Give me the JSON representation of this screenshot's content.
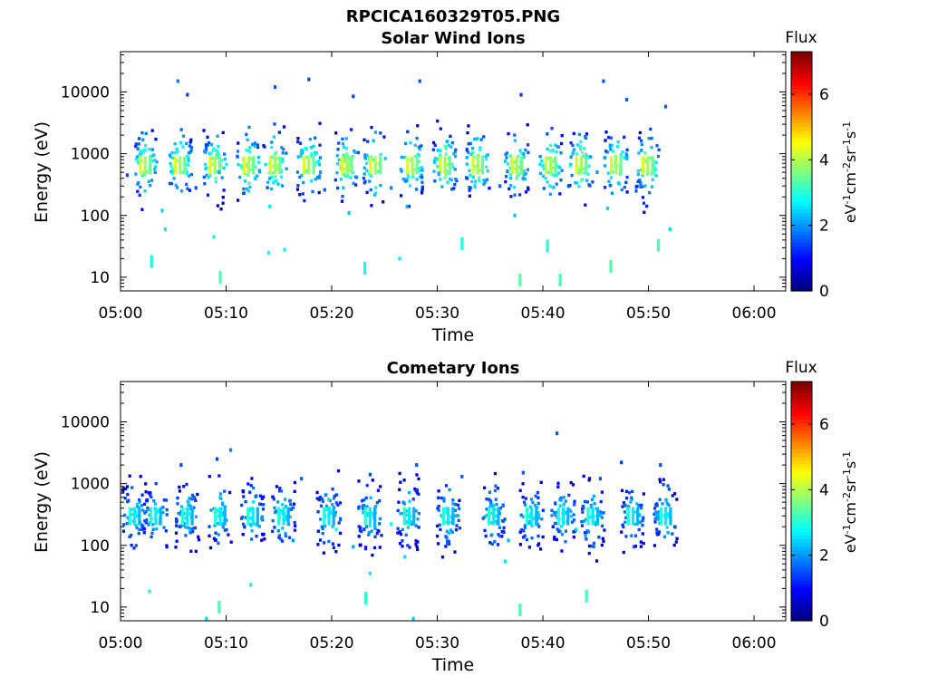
{
  "figure_title": "RPCICA160329T05.PNG",
  "colors": {
    "frame": "#000000",
    "background": "#ffffff"
  },
  "chart_data": [
    {
      "type": "heatmap",
      "title": "Solar Wind Ions",
      "xlabel": "Time",
      "ylabel": "Energy (eV)",
      "x_unit": "minutes after 05:00",
      "xlim": [
        0,
        63
      ],
      "x_ticks": [
        0,
        10,
        20,
        30,
        40,
        50,
        60
      ],
      "x_tick_labels": [
        "05:00",
        "05:10",
        "05:20",
        "05:30",
        "05:40",
        "05:50",
        "06:00"
      ],
      "y_scale": "log",
      "ylim": [
        6,
        45000
      ],
      "y_ticks": [
        10,
        100,
        1000,
        10000
      ],
      "y_tick_labels": [
        "10",
        "100",
        "1000",
        "10000"
      ],
      "colorbar": {
        "title": "Flux",
        "label": "eV-1cm-2sr-1s-1",
        "colormap": "jet",
        "range": [
          0,
          7.3
        ],
        "ticks": [
          0,
          2,
          4,
          6
        ],
        "tick_labels": [
          "0",
          "2",
          "4",
          "6"
        ]
      },
      "bursts": {
        "times": [
          2.2,
          5.5,
          8.8,
          12,
          14.5,
          17.7,
          21.3,
          24,
          27.5,
          30.6,
          33.7,
          37.4,
          40.6,
          43.5,
          46.8,
          49.8
        ],
        "core_energy": 700,
        "peak_level": 4.3
      },
      "points": [
        [
          5.3,
          15000,
          1.8
        ],
        [
          14.5,
          12000,
          1.5
        ],
        [
          17.7,
          16000,
          1.4
        ],
        [
          28.2,
          15000,
          1.5
        ],
        [
          45.6,
          15000,
          1.5
        ],
        [
          21.9,
          8500,
          1.4
        ],
        [
          37.8,
          9000,
          1.3
        ],
        [
          47.8,
          7500,
          1.6
        ],
        [
          51.5,
          5800,
          1.6
        ],
        [
          6.2,
          9000,
          1.3
        ],
        [
          1.5,
          1200,
          1.8
        ],
        [
          0.5,
          450,
          1.4
        ],
        [
          9.2,
          500,
          2.2
        ],
        [
          18.8,
          500,
          2.0
        ],
        [
          30,
          480,
          2.1
        ],
        [
          36.5,
          520,
          1.9
        ],
        [
          45,
          500,
          2.0
        ],
        [
          7,
          280,
          1.5
        ],
        [
          19.2,
          260,
          1.6
        ],
        [
          25.5,
          280,
          1.8
        ],
        [
          35.8,
          300,
          1.6
        ],
        [
          42.3,
          300,
          1.5
        ],
        [
          48.7,
          250,
          1.6
        ],
        [
          3.8,
          120,
          2.4
        ],
        [
          14,
          140,
          2.6
        ],
        [
          21.5,
          110,
          2.3
        ],
        [
          27,
          140,
          2.2
        ],
        [
          37.2,
          100,
          2.3
        ],
        [
          46,
          130,
          2.4
        ],
        [
          2.8,
          18,
          2.9
        ],
        [
          8.7,
          45,
          2.8
        ],
        [
          13.9,
          25,
          2.8
        ],
        [
          15.4,
          28,
          2.7
        ],
        [
          23,
          14,
          2.9
        ],
        [
          26.3,
          20,
          2.6
        ],
        [
          32.2,
          35,
          3.0
        ],
        [
          40.3,
          32,
          3.0
        ],
        [
          50.8,
          33,
          3.2
        ],
        [
          4.1,
          60,
          2.6
        ],
        [
          41.5,
          9,
          3.2
        ],
        [
          46.3,
          15,
          3.3
        ],
        [
          37.7,
          9,
          3.4
        ],
        [
          9.3,
          10,
          3.3
        ],
        [
          51.9,
          60,
          2.5
        ]
      ]
    },
    {
      "type": "heatmap",
      "title": "Cometary Ions",
      "xlabel": "Time",
      "ylabel": "Energy (eV)",
      "x_unit": "minutes after 05:00",
      "xlim": [
        0,
        63
      ],
      "x_ticks": [
        0,
        10,
        20,
        30,
        40,
        50,
        60
      ],
      "x_tick_labels": [
        "05:00",
        "05:10",
        "05:20",
        "05:30",
        "05:40",
        "05:50",
        "06:00"
      ],
      "y_scale": "log",
      "ylim": [
        6,
        45000
      ],
      "y_ticks": [
        10,
        100,
        1000,
        10000
      ],
      "y_tick_labels": [
        "10",
        "100",
        "1000",
        "10000"
      ],
      "colorbar": {
        "title": "Flux",
        "label": "eV-1cm-2sr-1s-1",
        "colormap": "jet",
        "range": [
          0,
          7.3
        ],
        "ticks": [
          0,
          2,
          4,
          6
        ],
        "tick_labels": [
          "0",
          "2",
          "4",
          "6"
        ]
      },
      "bursts": {
        "times": [
          1.2,
          3.2,
          6.2,
          9.3,
          12.4,
          15.3,
          19.6,
          23.5,
          27.2,
          30.9,
          35.2,
          38.8,
          41.8,
          44.6,
          48.4,
          51.5
        ],
        "core_energy": 320,
        "peak_level": 3.0
      },
      "points": [
        [
          10.3,
          3500,
          1.8
        ],
        [
          41.2,
          6500,
          1.5
        ],
        [
          9,
          2500,
          1.4
        ],
        [
          47.3,
          2200,
          1.3
        ],
        [
          5.6,
          2000,
          1.4
        ],
        [
          23.5,
          1400,
          1.5
        ],
        [
          27.9,
          2000,
          1.5
        ],
        [
          32.2,
          1300,
          1.6
        ],
        [
          38,
          1500,
          1.5
        ],
        [
          45.3,
          1200,
          1.5
        ],
        [
          51,
          2000,
          1.4
        ],
        [
          17,
          1200,
          1.6
        ],
        [
          21.9,
          95,
          2.1
        ],
        [
          16.2,
          120,
          2.0
        ],
        [
          36.6,
          120,
          2.2
        ],
        [
          43.9,
          140,
          2.1
        ],
        [
          2.6,
          18,
          2.7
        ],
        [
          12.2,
          23,
          2.8
        ],
        [
          23.5,
          35,
          2.6
        ],
        [
          23.1,
          14,
          3.0
        ],
        [
          9.2,
          10,
          3.3
        ],
        [
          37.7,
          9,
          3.3
        ],
        [
          44,
          15,
          3.2
        ],
        [
          27.6,
          6.5,
          2.4
        ],
        [
          8,
          6.5,
          2.4
        ],
        [
          26.8,
          65,
          2.5
        ],
        [
          36.3,
          55,
          2.6
        ],
        [
          20.3,
          180,
          2.8
        ],
        [
          25.5,
          220,
          2.7
        ],
        [
          43,
          180,
          2.5
        ]
      ]
    }
  ]
}
